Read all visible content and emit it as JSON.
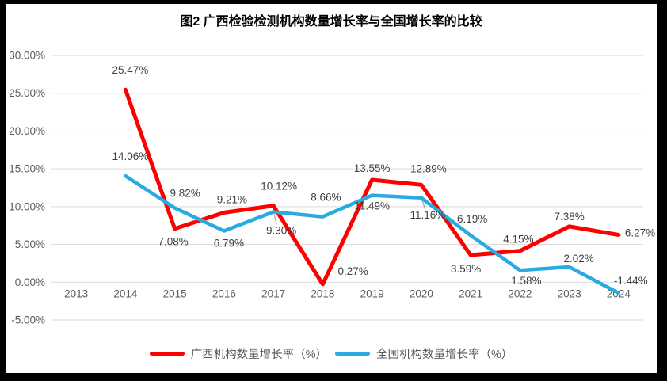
{
  "title": "图2 广西检验检测机构数量增长率与全国增长率的比较",
  "chart_data": {
    "type": "line",
    "categories": [
      "2013",
      "2014",
      "2015",
      "2016",
      "2017",
      "2018",
      "2019",
      "2020",
      "2021",
      "2022",
      "2023",
      "2024"
    ],
    "series": [
      {
        "name": "广西机构数量增长率（%）",
        "color": "#FE0000",
        "values": [
          null,
          25.47,
          7.08,
          9.21,
          10.12,
          -0.27,
          13.55,
          12.89,
          3.59,
          4.15,
          7.38,
          6.27
        ],
        "labels": [
          null,
          "25.47%",
          "7.08%",
          "9.21%",
          "10.12%",
          "-0.27%",
          "13.55%",
          "12.89%",
          "3.59%",
          "4.15%",
          "7.38%",
          "6.27%"
        ]
      },
      {
        "name": "全国机构数量增长率（%）",
        "color": "#29ABE2",
        "values": [
          null,
          14.06,
          9.82,
          6.79,
          9.3,
          8.66,
          11.49,
          11.16,
          6.19,
          1.58,
          2.02,
          -1.44
        ],
        "labels": [
          null,
          "14.06%",
          "9.82%",
          "6.79%",
          "9.30%",
          "8.66%",
          "11.49%",
          "11.16%",
          "6.19%",
          "1.58%",
          "2.02%",
          "-1.44%"
        ]
      }
    ],
    "yticks": [
      "30.00%",
      "25.00%",
      "20.00%",
      "15.00%",
      "10.00%",
      "5.00%",
      "0.00%",
      "-5.00%"
    ],
    "ylim": [
      -5,
      30
    ],
    "ytick_step": 5,
    "grid": true,
    "legend_position": "bottom",
    "colors": {
      "grid": "#D9D9D9",
      "axis_text": "#595959",
      "label_text": "#3F3F3F",
      "leader": "#A6A6A6",
      "background": "#FFFFFF",
      "frame": "#000000"
    }
  }
}
